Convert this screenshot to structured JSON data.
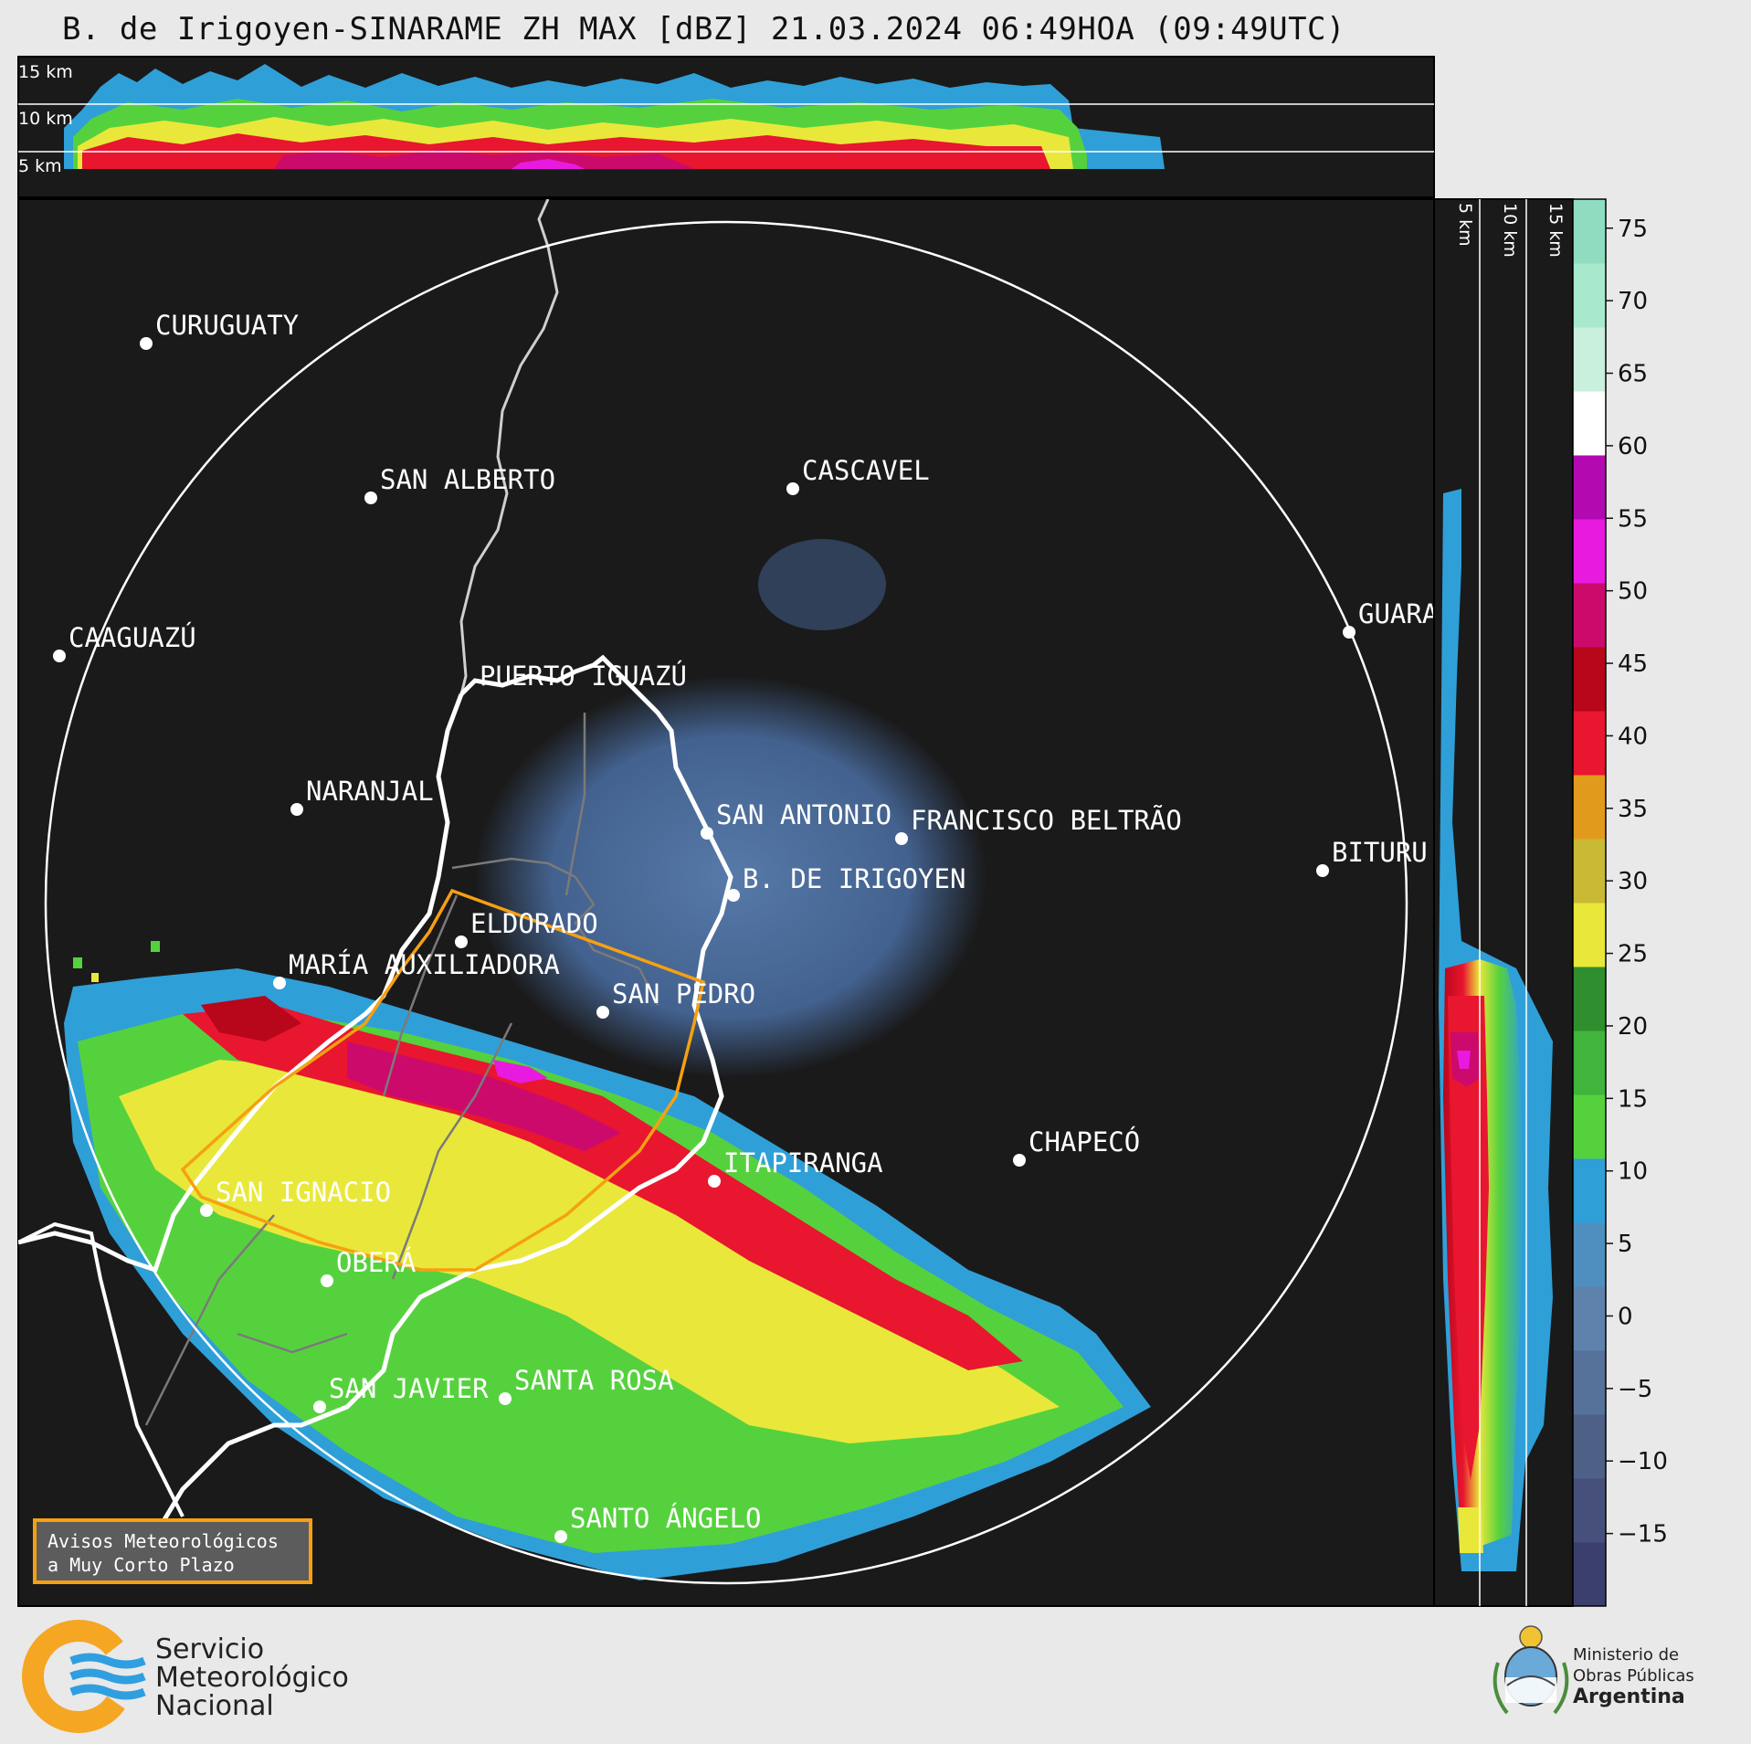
{
  "title": "B. de Irigoyen-SINARAME ZH MAX [dBZ] 21.03.2024 06:49HOA (09:49UTC)",
  "top_panel": {
    "height_labels": [
      "15 km",
      "10 km",
      "5 km"
    ]
  },
  "side_panel": {
    "height_labels": [
      "5 km",
      "10 km",
      "15 km"
    ]
  },
  "cities": [
    {
      "name": "CURUGUATY"
    },
    {
      "name": "SAN ALBERTO"
    },
    {
      "name": "CASCAVEL"
    },
    {
      "name": "CAAGUAZÚ"
    },
    {
      "name": "GUARA"
    },
    {
      "name": "PUERTO IGUAZÚ"
    },
    {
      "name": "NARANJAL"
    },
    {
      "name": "SAN ANTONIO"
    },
    {
      "name": "FRANCISCO BELTRÃO"
    },
    {
      "name": "B. DE IRIGOYEN"
    },
    {
      "name": "BITURU"
    },
    {
      "name": "ELDORADO"
    },
    {
      "name": "MARÍA AUXILIADORA"
    },
    {
      "name": "SAN PEDRO"
    },
    {
      "name": "CHAPECÓ"
    },
    {
      "name": "ITAPIRANGA"
    },
    {
      "name": "SAN IGNACIO"
    },
    {
      "name": "OBERÁ"
    },
    {
      "name": "SAN JAVIER"
    },
    {
      "name": "SANTA ROSA"
    },
    {
      "name": "SANTO ÁNGELO"
    }
  ],
  "colorbar": {
    "unit": "dBZ",
    "ticks": [
      "75",
      "70",
      "65",
      "60",
      "55",
      "50",
      "45",
      "40",
      "35",
      "30",
      "25",
      "20",
      "15",
      "10",
      "5",
      "0",
      "−5",
      "−10",
      "−15"
    ],
    "colors": [
      "#3b3f6e",
      "#46507a",
      "#4e6086",
      "#56719a",
      "#5f82ad",
      "#4f8fc0",
      "#2f9fd8",
      "#56d13e",
      "#40b43b",
      "#2f8f2e",
      "#e9e83a",
      "#c9b935",
      "#e29a1c",
      "#e8162e",
      "#b8061b",
      "#cc0a6c",
      "#e81ae0",
      "#b20ab0",
      "#ffffff",
      "#c8f0dc",
      "#a8e8cc",
      "#8fdcc0"
    ]
  },
  "avisos": {
    "line1": "Avisos Meteorológicos",
    "line2": "a Muy Corto Plazo"
  },
  "smn": {
    "line1": "Servicio",
    "line2": "Meteorológico",
    "line3": "Nacional"
  },
  "ministerio": {
    "line1": "Ministerio de",
    "line2": "Obras Públicas",
    "line3": "Argentina"
  },
  "colors": {
    "radar_background": "#1a1a1a",
    "warning_border": "#f5a013",
    "smn_orange": "#f5a623",
    "smn_blue": "#2f9fe0"
  }
}
